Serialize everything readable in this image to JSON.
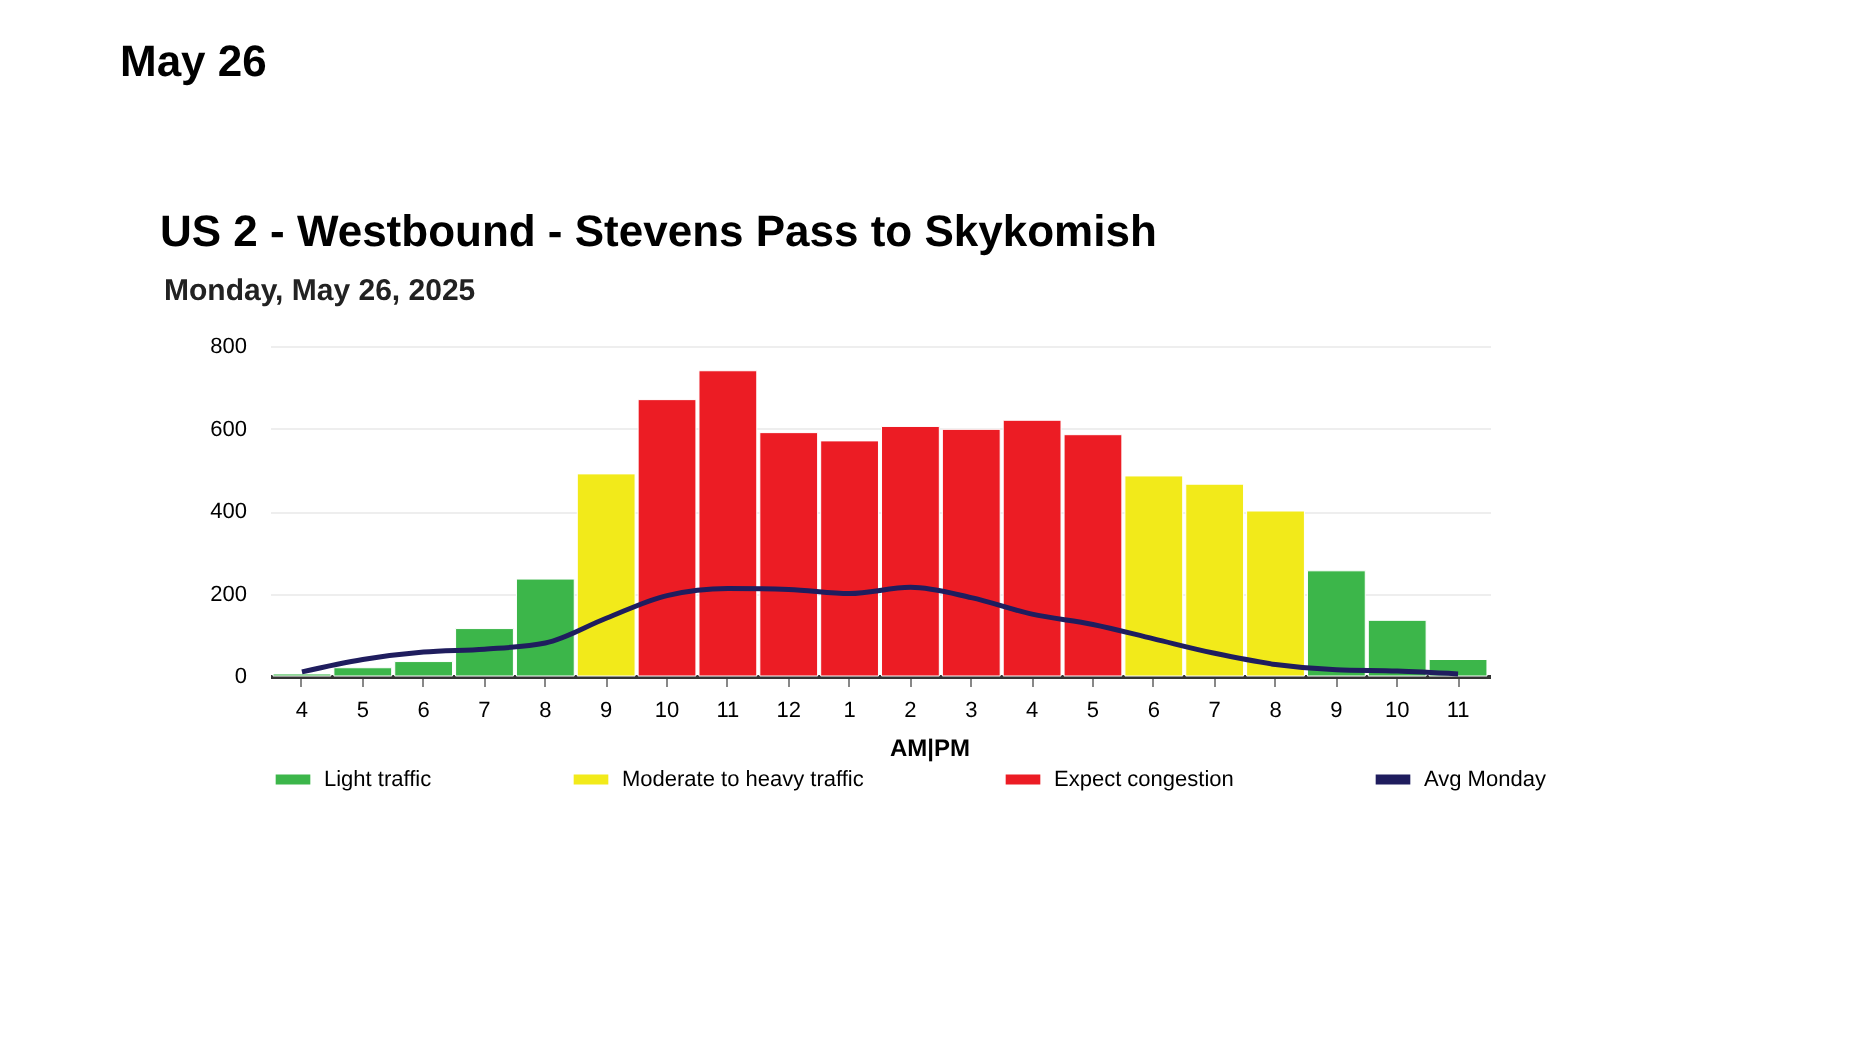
{
  "chart_data": {
    "type": "bar",
    "title": "US 2 - Westbound - Stevens Pass to Skykomish",
    "subtitle": "Monday, May 26, 2025",
    "annotations": [
      "May 26",
      "AM|PM"
    ],
    "categories": [
      "4",
      "5",
      "6",
      "7",
      "8",
      "9",
      "10",
      "11",
      "12",
      "1",
      "2",
      "3",
      "4",
      "5",
      "6",
      "7",
      "8",
      "9",
      "10",
      "11"
    ],
    "series": [
      {
        "name": "Light traffic",
        "color": "#3cb64a",
        "values": [
          5,
          20,
          35,
          115,
          235,
          null,
          null,
          null,
          null,
          null,
          null,
          null,
          null,
          null,
          null,
          null,
          null,
          255,
          135,
          40
        ]
      },
      {
        "name": "Moderate to heavy traffic",
        "color": "#f2ea1a",
        "values": [
          null,
          null,
          null,
          null,
          null,
          490,
          null,
          null,
          null,
          null,
          null,
          null,
          null,
          null,
          485,
          465,
          400,
          null,
          null,
          null
        ]
      },
      {
        "name": "Expect congestion",
        "color": "#ec1c24",
        "values": [
          null,
          null,
          null,
          null,
          null,
          null,
          670,
          740,
          590,
          570,
          605,
          598,
          620,
          585,
          null,
          null,
          null,
          null,
          null,
          null
        ]
      },
      {
        "name": "Avg Monday",
        "type": "line",
        "color": "#1f1d5e",
        "values": [
          10,
          40,
          58,
          65,
          80,
          140,
          195,
          212,
          210,
          200,
          215,
          190,
          150,
          125,
          90,
          55,
          28,
          15,
          12,
          5
        ]
      }
    ],
    "ylim": [
      0,
      800
    ],
    "yticks": [
      0,
      200,
      400,
      600,
      800
    ],
    "grid": "y",
    "legend": "bottom"
  }
}
